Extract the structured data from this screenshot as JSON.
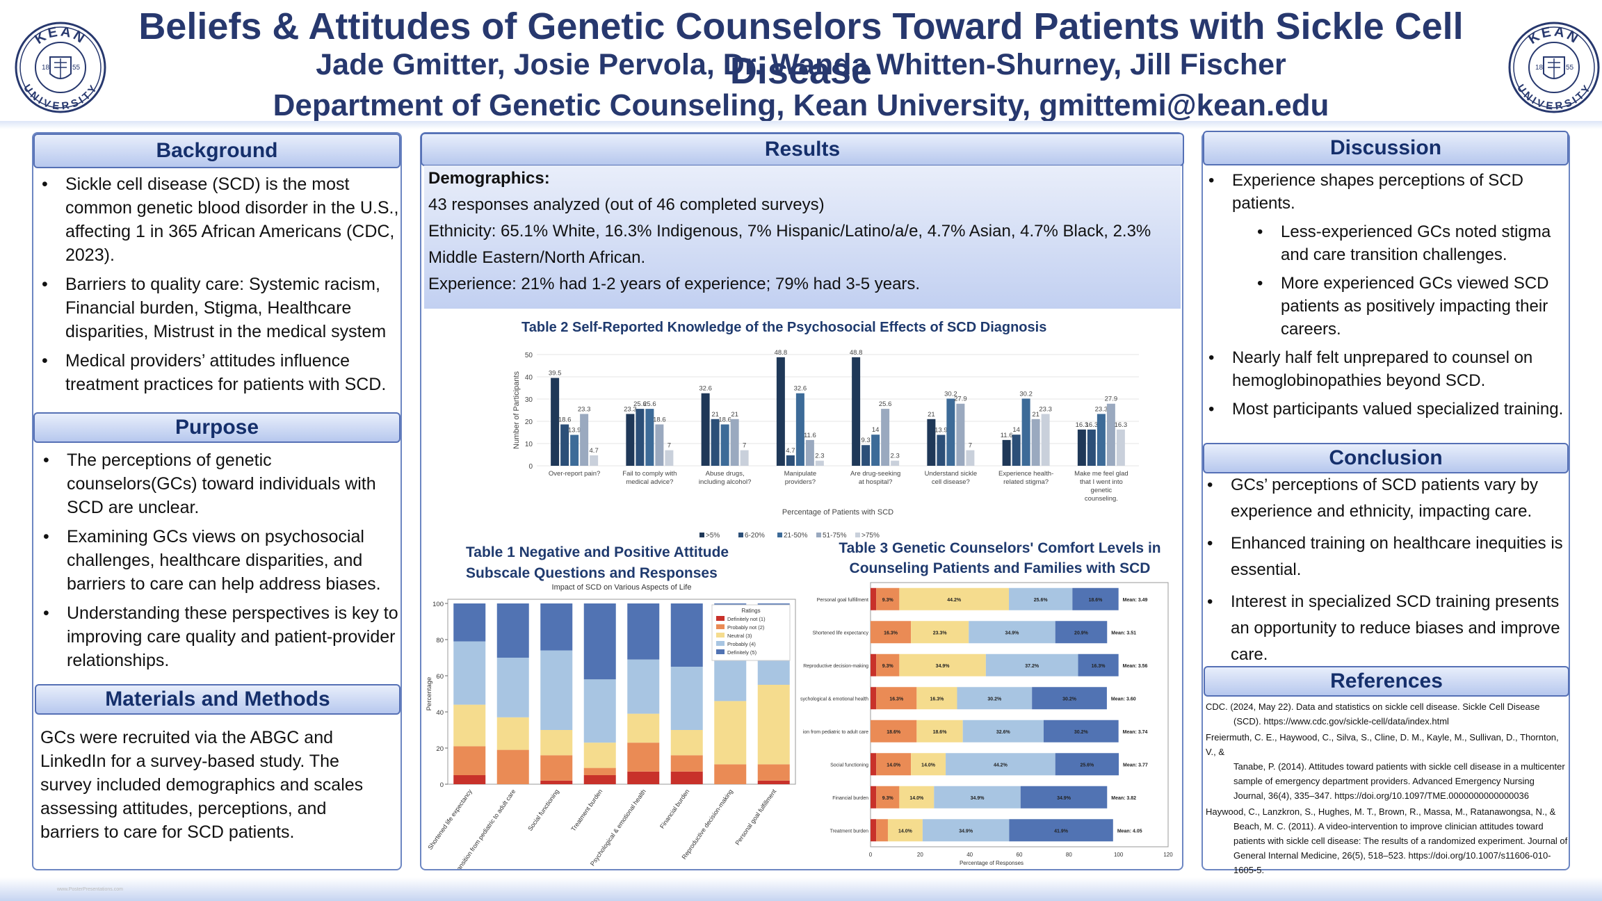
{
  "header": {
    "title": "Beliefs & Attitudes of Genetic Counselors Toward Patients with Sickle Cell Disease",
    "authors": "Jade Gmitter, Josie Pervola, Dr. Wanda Whitten-Shurney, Jill Fischer",
    "department": "Department of Genetic Counseling, Kean University, gmittemi@kean.edu",
    "seal_top": "KEAN",
    "seal_bottom": "UNIVERSITY",
    "seal_year_left": "18",
    "seal_year_right": "55"
  },
  "background": {
    "heading": "Background",
    "bullets": [
      "Sickle cell disease (SCD) is the most common genetic blood disorder in the U.S., affecting 1 in 365 African Americans (CDC, 2023).",
      "Barriers to quality care: Systemic racism, Financial burden, Stigma, Healthcare disparities, Mistrust in the medical system",
      "Medical providers’ attitudes influence treatment practices for patients with SCD."
    ]
  },
  "purpose": {
    "heading": "Purpose",
    "bullets": [
      "The perceptions of genetic counselors(GCs) toward individuals with SCD are unclear.",
      "Examining GCs views on psychosocial challenges, healthcare disparities, and barriers to care can help address biases.",
      "Understanding these perspectives is key to improving care quality and patient-provider relationships."
    ]
  },
  "methods": {
    "heading": "Materials and Methods",
    "text": "GCs were recruited via the ABGC and LinkedIn for a survey-based study. The survey included demographics and scales assessing attitudes, perceptions, and barriers to care for SCD patients."
  },
  "results": {
    "heading": "Results",
    "demo_heading": "Demographics:",
    "demo_lines": [
      "43 responses analyzed (out of 46 completed surveys)",
      "Ethnicity: 65.1% White, 16.3% Indigenous, 7% Hispanic/Latino/a/e, 4.7% Asian, 4.7% Black, 2.3% Middle Eastern/North African.",
      "Experience: 21% had 1-2 years of experience; 79% had 3-5 years."
    ]
  },
  "discussion": {
    "heading": "Discussion",
    "b1": "Experience shapes perceptions of SCD patients.",
    "sub": [
      "Less-experienced GCs noted stigma and care transition challenges.",
      " More experienced GCs viewed SCD patients as positively impacting their careers."
    ],
    "b2": "Nearly half felt unprepared to counsel on hemoglobinopathies beyond SCD.",
    "b3": "Most participants valued specialized training."
  },
  "conclusion": {
    "heading": "Conclusion",
    "bullets": [
      "GCs’ perceptions of SCD patients vary by experience and ethnicity, impacting care.",
      "Enhanced training on healthcare inequities is essential.",
      " Interest in specialized SCD training presents an opportunity to reduce biases and improve care."
    ]
  },
  "references": {
    "heading": "References",
    "items": [
      {
        "first": "CDC. (2024, May 22). Data and statistics on sickle cell disease. Sickle Cell Disease",
        "rest": "(SCD). https://www.cdc.gov/sickle-cell/data/index.html"
      },
      {
        "first": "Freiermuth, C. E., Haywood, C., Silva, S., Cline, D. M., Kayle, M., Sullivan, D., Thornton, V., &",
        "rest": "Tanabe, P. (2014). Attitudes toward patients with sickle cell disease in a multicenter sample of emergency department providers. Advanced Emergency Nursing Journal, 36(4), 335–347. https://doi.org/10.1097/TME.0000000000000036"
      },
      {
        "first": "Haywood, C., Lanzkron, S., Hughes, M. T., Brown, R., Massa, M., Ratanawongsa, N., &",
        "rest": "Beach, M. C. (2011). A video-intervention to improve clinician attitudes toward patients with sickle cell disease: The results of a randomized experiment. Journal of General Internal Medicine, 26(5), 518–523. https://doi.org/10.1007/s11606-010-1605-5."
      }
    ]
  },
  "footer": {
    "note": "www.PosterPresentations.com"
  },
  "colors": {
    "navy": "#27386e",
    "panel_border": "#6c86c2"
  },
  "chart_data": [
    {
      "type": "bar",
      "title": "Table 2 Self-Reported Knowledge of the Psychosocial Effects of SCD Diagnosis",
      "xlabel": "Percentage of Patients with SCD",
      "ylabel": "Number of Participants",
      "ylim": [
        0,
        50
      ],
      "yticks": [
        0,
        10,
        20,
        30,
        40,
        50
      ],
      "categories": [
        [
          "Over-report pain?"
        ],
        [
          "Fail to comply with",
          "medical advice?"
        ],
        [
          "Abuse drugs,",
          "including alcohol?"
        ],
        [
          "Manipulate",
          "providers?"
        ],
        [
          "Are drug-seeking",
          "at hospital?"
        ],
        [
          "Understand sickle",
          "cell disease?"
        ],
        [
          "Experience health-",
          "related stigma?"
        ],
        [
          "Make me feel glad",
          "that I went into",
          "genetic",
          "counseling."
        ]
      ],
      "series": [
        {
          "name": ">5%",
          "color": "#1f3858",
          "values": [
            39.5,
            23.3,
            32.6,
            48.8,
            48.8,
            21,
            11.6,
            16.3
          ]
        },
        {
          "name": "6-20%",
          "color": "#2c4f78",
          "values": [
            18.6,
            25.6,
            21,
            4.7,
            9.3,
            13.9,
            14,
            16.3
          ]
        },
        {
          "name": "21-50%",
          "color": "#3d6b98",
          "values": [
            13.9,
            25.6,
            18.6,
            32.6,
            14,
            30.2,
            30.2,
            23.3
          ]
        },
        {
          "name": "51-75%",
          "color": "#9aa9bf",
          "values": [
            23.3,
            18.6,
            21,
            11.6,
            25.6,
            27.9,
            21,
            27.9
          ]
        },
        {
          "name": ">75%",
          "color": "#c9d0db",
          "values": [
            4.7,
            7,
            7,
            2.3,
            2.3,
            7,
            23.3,
            16.3
          ]
        }
      ]
    },
    {
      "type": "bar",
      "stacked": true,
      "title": "Table 1 Negative and Positive Attitude Subscale Questions and Responses",
      "subtitle": "Impact of SCD on Various Aspects of Life",
      "ylabel": "Percentage",
      "ylim": [
        0,
        100
      ],
      "yticks": [
        0,
        20,
        40,
        60,
        80,
        100
      ],
      "legend_title": "Ratings",
      "legend_position": "top-right",
      "categories": [
        "Shortened life expectancy",
        "Transition from pediatric to adult care",
        "Social functioning",
        "Treatment burden",
        "Psychological & emotional health",
        "Financial burden",
        "Reproductive decision-making",
        "Personal goal fulfillment"
      ],
      "series": [
        {
          "name": "Definitely not (1)",
          "color": "#c8312a",
          "values": [
            5,
            0,
            2,
            5,
            7,
            7,
            0,
            2
          ]
        },
        {
          "name": "Probably not (2)",
          "color": "#ea8b55",
          "values": [
            16,
            19,
            14,
            4,
            16,
            9,
            11,
            9
          ]
        },
        {
          "name": "Neutral (3)",
          "color": "#f5dc8e",
          "values": [
            23,
            18,
            14,
            14,
            16,
            14,
            35,
            44
          ]
        },
        {
          "name": "Probably (4)",
          "color": "#a8c5e2",
          "values": [
            35,
            33,
            44,
            35,
            30,
            35,
            37,
            26
          ]
        },
        {
          "name": "Definitely (5)",
          "color": "#5173b3",
          "values": [
            21,
            30,
            26,
            42,
            31,
            35,
            17,
            19
          ]
        }
      ]
    },
    {
      "type": "bar",
      "horizontal": true,
      "stacked": true,
      "title": "Table 3 Genetic Counselors' Comfort Levels in Counseling Patients and Families with SCD",
      "xlabel": "Percentage of Responses",
      "xlim": [
        0,
        120
      ],
      "xticks": [
        0,
        20,
        40,
        60,
        80,
        100,
        120
      ],
      "categories": [
        "Personal goal fulfillment",
        "Shortened life expectancy",
        "Reproductive decision-making",
        "Psychological & emotional health",
        "Transition from pediatric to adult care",
        "Social functioning",
        "Financial burden",
        "Treatment burden"
      ],
      "tick_labels": [
        "Personal goal fulfillment",
        "Shortened life expectancy",
        "Reproductive decision-making",
        "sychological & emotional health",
        "ion from pediatric to adult care",
        "Social functioning",
        "Financial burden",
        "Treatment burden"
      ],
      "means": [
        "Mean: 3.49",
        "Mean: 3.51",
        "Mean: 3.56",
        "Mean: 3.60",
        "Mean: 3.74",
        "Mean: 3.77",
        "Mean: 3.82",
        "Mean: 4.05"
      ],
      "colors": [
        "#c8312a",
        "#ea8b55",
        "#f5dc8e",
        "#a8c5e2",
        "#5173b3"
      ],
      "values": [
        [
          2.3,
          9.3,
          44.2,
          25.6,
          18.6
        ],
        [
          0,
          16.3,
          23.3,
          34.9,
          20.9
        ],
        [
          2.3,
          9.3,
          34.9,
          37.2,
          16.3
        ],
        [
          2.3,
          16.3,
          16.3,
          30.2,
          30.2
        ],
        [
          0,
          18.6,
          18.6,
          32.6,
          30.2
        ],
        [
          2.3,
          14,
          14,
          44.2,
          25.6
        ],
        [
          2.3,
          9.3,
          14,
          34.9,
          34.9
        ],
        [
          2.3,
          4.7,
          14,
          34.9,
          41.9
        ]
      ],
      "labels": [
        [
          "",
          "9.3%",
          "44.2%",
          "25.6%",
          "18.6%"
        ],
        [
          "",
          "16.3%",
          "23.3%",
          "34.9%",
          "20.9%"
        ],
        [
          "",
          "9.3%",
          "34.9%",
          "37.2%",
          "16.3%"
        ],
        [
          "",
          "16.3%",
          "16.3%",
          "30.2%",
          "30.2%"
        ],
        [
          "",
          "18.6%",
          "18.6%",
          "32.6%",
          "30.2%"
        ],
        [
          "",
          "14.0%",
          "14.0%",
          "44.2%",
          "25.6%"
        ],
        [
          "",
          "9.3%",
          "14.0%",
          "34.9%",
          "34.9%"
        ],
        [
          "",
          "",
          "14.0%",
          "34.9%",
          "41.9%"
        ]
      ]
    }
  ]
}
